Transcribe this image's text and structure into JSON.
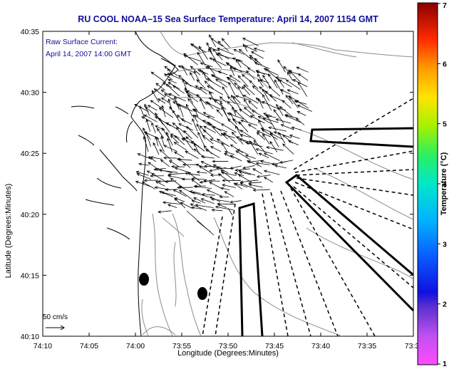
{
  "title": "RU COOL  NOAA–15  Sea Surface Temperature:  April 14, 2007 1154 GMT",
  "inset": {
    "line1": "Raw Surface Current:",
    "line2": "April 14, 2007 14:00 GMT"
  },
  "axes": {
    "xlabel": "Longitude (Degrees:Minutes)",
    "ylabel": "Latitude (Degrees:Minutes)",
    "xticks": [
      "74:10",
      "74:05",
      "74:00",
      "73:55",
      "73:50",
      "73:45",
      "73:40",
      "73:35",
      "73:3"
    ],
    "yticks": [
      "40:35",
      "40:30",
      "40:25",
      "40:20",
      "40:15",
      "40:10"
    ]
  },
  "scale_label": "50 cm/s",
  "colorbar": {
    "title": "Temperature (°C)",
    "ticks": [
      "7",
      "6",
      "5",
      "4",
      "3",
      "2",
      "1"
    ]
  },
  "colors": {
    "title": "#10109c",
    "land_outline": "#000000",
    "bathymetry": "#888888",
    "vectors": "#000000"
  }
}
